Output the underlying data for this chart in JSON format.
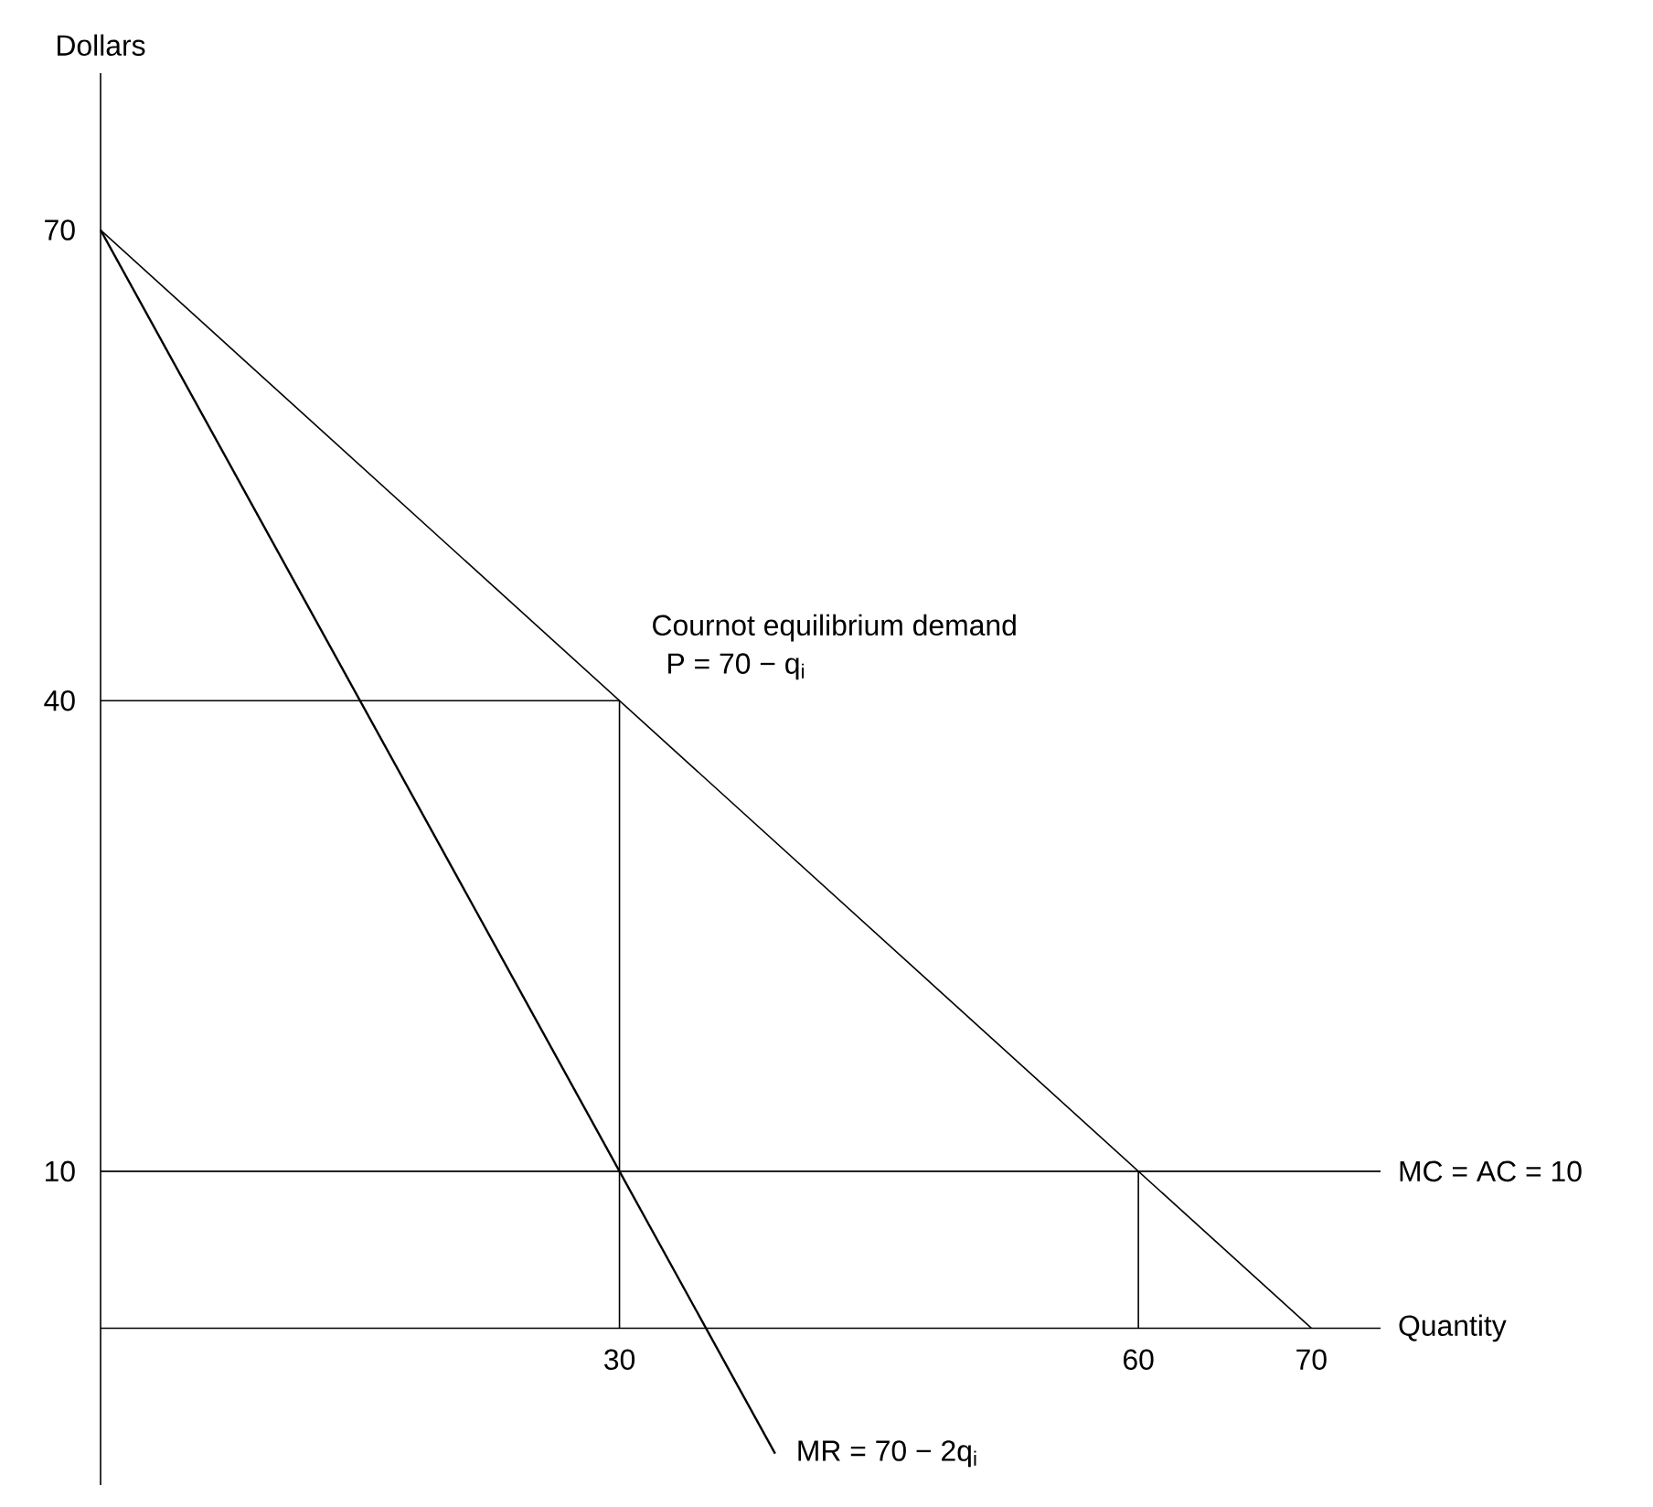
{
  "chart_data": {
    "type": "line",
    "xlabel": "Quantity",
    "ylabel": "Dollars",
    "xlim": [
      0,
      74
    ],
    "ylim": [
      -10,
      80
    ],
    "xticks": [
      30,
      60,
      70
    ],
    "yticks": [
      10,
      40,
      70
    ],
    "series": [
      {
        "color": "#000000",
        "x": [
          0,
          70
        ],
        "values": [
          70,
          0
        ]
      },
      {
        "name": "MR = 70 − 2q$_{i}$",
        "color": "#000000",
        "x": [
          0,
          39
        ],
        "values": [
          70,
          -8
        ]
      },
      {
        "color": "#000000",
        "x": [
          0,
          30,
          30
        ],
        "values": [
          40,
          40,
          0
        ]
      },
      {
        "color": "#000000",
        "x": [
          60,
          60
        ],
        "values": [
          10,
          0
        ]
      }
    ],
    "ref_lines": [
      {
        "axis": "y",
        "value": 10,
        "label": "MC = AC = 10"
      }
    ],
    "annotations": [
      {
        "text": "Cournot equilibrium demand",
        "x": 30,
        "y": 40
      },
      {
        "text": "P = 70 − q$_{i}$",
        "x": 30,
        "y": 40
      }
    ],
    "grid": false,
    "marker": "none"
  }
}
